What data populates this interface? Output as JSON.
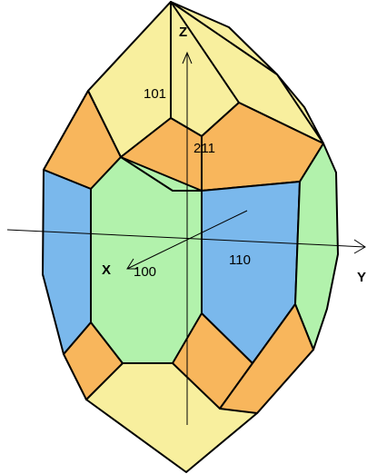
{
  "colors": {
    "pyramid_face": "#f8ef9e",
    "prism_face_green": "#b2f2ac",
    "prism_face_blue": "#7ab8ec",
    "orange_face": "#f8b65c",
    "edge": "#000000"
  },
  "axes": {
    "z": "Z",
    "x": "X",
    "y": "Y"
  },
  "faces": {
    "top_pyramid": "101",
    "orange_top": "211",
    "front_prism": "100",
    "right_prism": "110"
  }
}
